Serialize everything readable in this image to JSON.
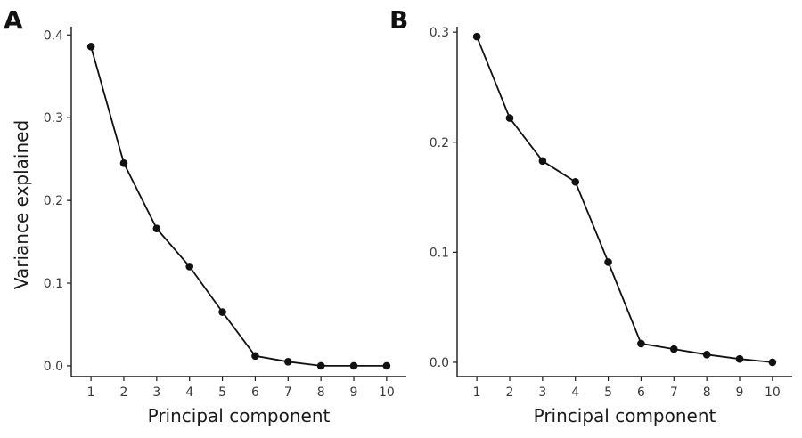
{
  "chart_data": [
    {
      "type": "line",
      "panel_label": "A",
      "xlabel": "Principal component",
      "ylabel": "Variance explained",
      "x": [
        1,
        2,
        3,
        4,
        5,
        6,
        7,
        8,
        9,
        10
      ],
      "y": [
        0.386,
        0.245,
        0.166,
        0.12,
        0.065,
        0.012,
        0.005,
        0.0,
        0.0,
        0.0
      ],
      "xlim": [
        0.4,
        10.6
      ],
      "ylim": [
        -0.013,
        0.41
      ],
      "xticks": [
        "1",
        "2",
        "3",
        "4",
        "5",
        "6",
        "7",
        "8",
        "9",
        "10"
      ],
      "yticks": [
        "0.0",
        "0.1",
        "0.2",
        "0.3",
        "0.4"
      ],
      "grid": false
    },
    {
      "type": "line",
      "panel_label": "B",
      "xlabel": "Principal component",
      "ylabel": "",
      "x": [
        1,
        2,
        3,
        4,
        5,
        6,
        7,
        8,
        9,
        10
      ],
      "y": [
        0.296,
        0.222,
        0.183,
        0.164,
        0.091,
        0.017,
        0.012,
        0.007,
        0.003,
        0.0
      ],
      "xlim": [
        0.4,
        10.6
      ],
      "ylim": [
        -0.013,
        0.305
      ],
      "xticks": [
        "1",
        "2",
        "3",
        "4",
        "5",
        "6",
        "7",
        "8",
        "9",
        "10"
      ],
      "yticks": [
        "0.0",
        "0.1",
        "0.2",
        "0.3"
      ],
      "grid": false
    }
  ]
}
